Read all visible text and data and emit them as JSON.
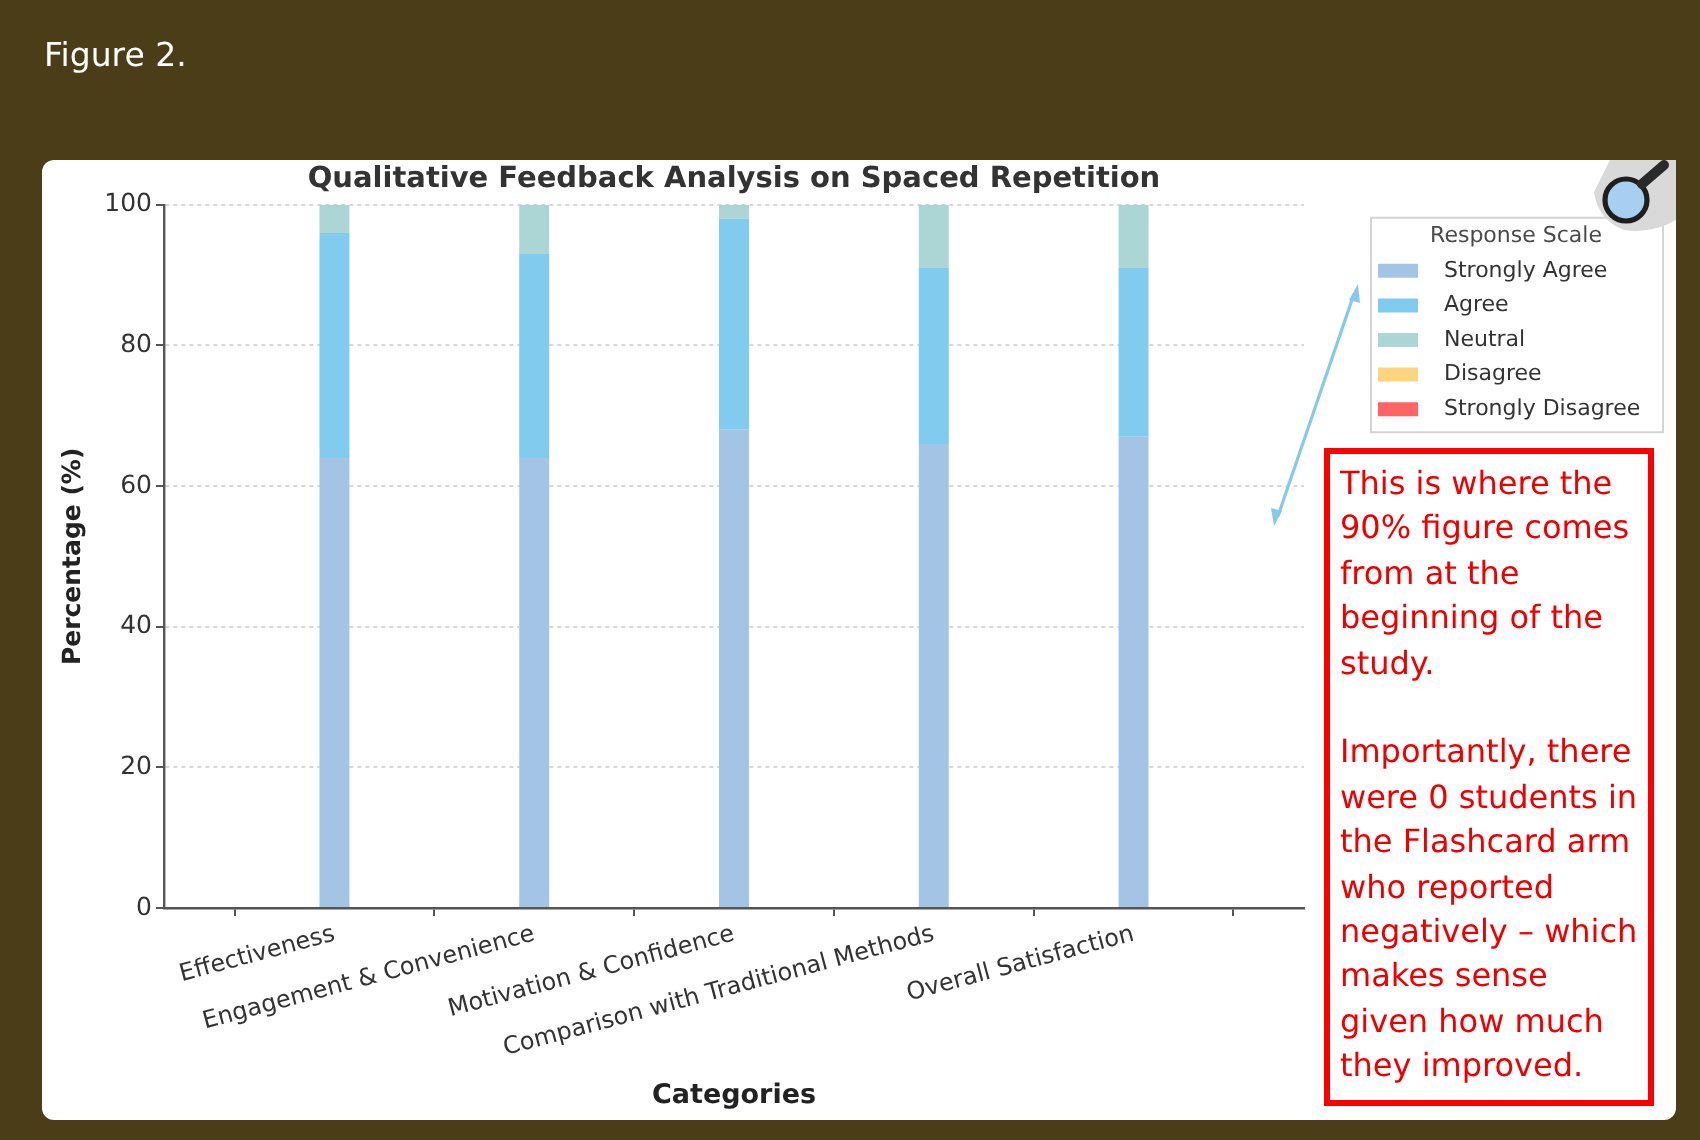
{
  "chart_data": {
    "type": "bar",
    "title": "Qualitative Feedback Analysis on Spaced Repetition",
    "xlabel": "Categories",
    "ylabel": "Percentage (%)",
    "legend_title": "Response Scale",
    "categories": [
      "Effectiveness",
      "Engagement & Convenience",
      "Motivation & Confidence",
      "Comparison with Traditional Methods",
      "Overall Satisfaction"
    ],
    "stacked": true,
    "series": [
      {
        "name": "Strongly Agree",
        "color": "#a4c4e6",
        "values": [
          64,
          64,
          68,
          66,
          67
        ]
      },
      {
        "name": "Agree",
        "color": "#80cbee",
        "values": [
          32,
          29,
          30,
          25,
          24
        ]
      },
      {
        "name": "Neutral",
        "color": "#acd6d6",
        "values": [
          4,
          7,
          2,
          9,
          9
        ]
      },
      {
        "name": "Disagree",
        "color": "#fdd57e",
        "values": [
          0,
          0,
          0,
          0,
          0
        ]
      },
      {
        "name": "Strongly Disagree",
        "color": "#ff6464",
        "values": [
          0,
          0,
          0,
          0,
          0
        ]
      }
    ],
    "ylim": [
      0,
      100
    ],
    "yticks": [
      0,
      20,
      40,
      60,
      80,
      100
    ],
    "grid": "y",
    "legend": "top right",
    "annotations": [
      "Figure 2.",
      "This is where the 90% figure comes from at the beginning of the study.\n\nImportantly, there were 0 students in the Flashcard arm who reported negatively – which makes sense given how much they improved."
    ]
  }
}
